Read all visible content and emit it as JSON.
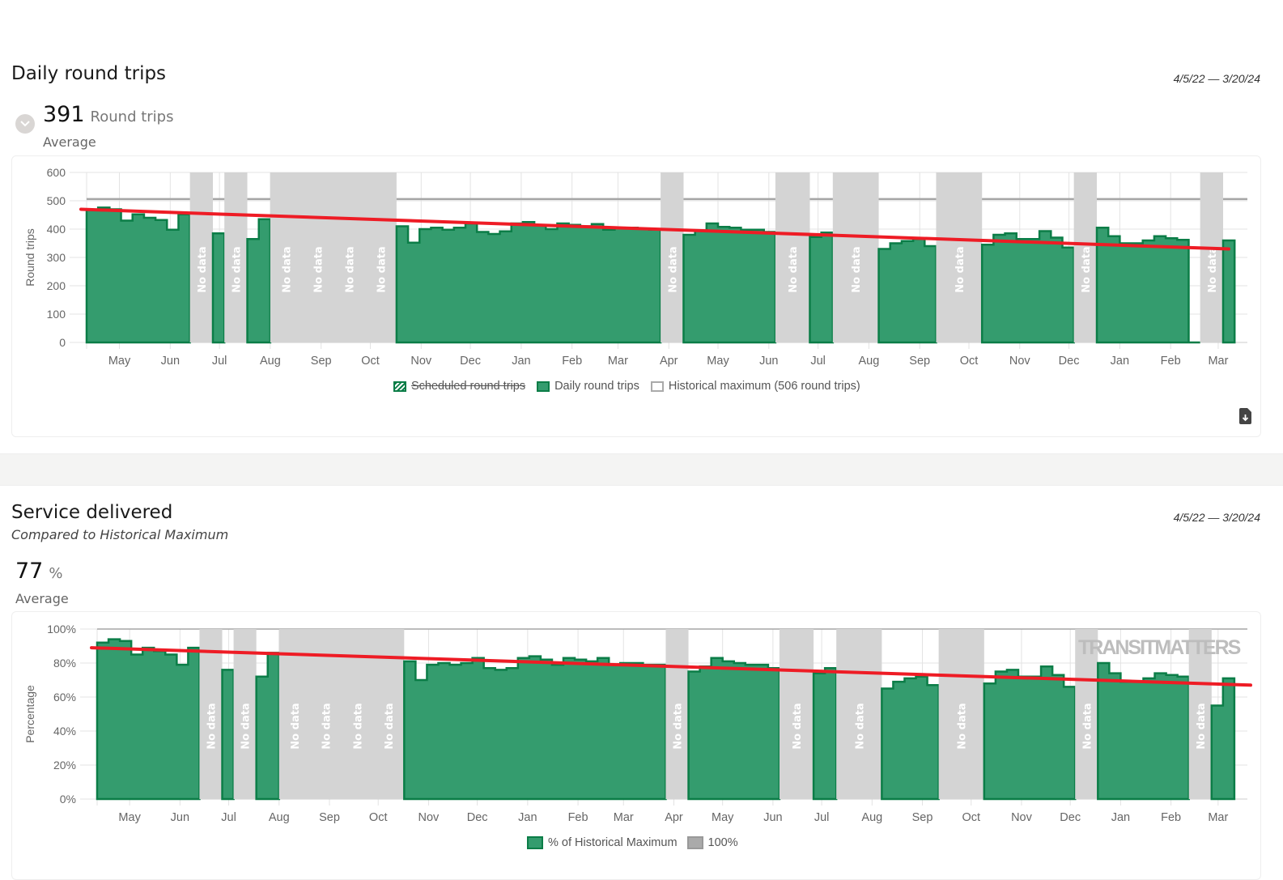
{
  "section1": {
    "title": "Daily round trips",
    "date_range": "4/5/22 — 3/20/24",
    "stat_value": "391",
    "stat_unit": "Round trips",
    "stat_label": "Average",
    "legend": [
      "Scheduled round trips",
      "Daily round trips",
      "Historical maximum (506 round trips)"
    ]
  },
  "section2": {
    "title": "Service delivered",
    "subtitle": "Compared to Historical Maximum",
    "date_range": "4/5/22 — 3/20/24",
    "stat_value": "77",
    "stat_unit": "%",
    "stat_label": "Average",
    "legend": [
      "% of Historical Maximum",
      "100%"
    ],
    "watermark": "TRANSITMATTERS"
  },
  "colors": {
    "fill": "#349c6e",
    "stroke": "#0b7d47",
    "nodata": "#d4d4d4",
    "trend": "#ee1c25",
    "maxline": "#a6a6a6"
  },
  "chart_data": [
    {
      "type": "area",
      "title": "Daily round trips",
      "ylabel": "Round trips",
      "ylim": [
        0,
        600
      ],
      "yticks": [
        0,
        100,
        200,
        300,
        400,
        500,
        600
      ],
      "ytick_labels": [
        "0",
        "100",
        "200",
        "300",
        "400",
        "500",
        "600"
      ],
      "x_start": "2022-04-11",
      "x_step_days": 7,
      "xticks": [
        [
          "May",
          "2022-05-01"
        ],
        [
          "Jun",
          "2022-06-01"
        ],
        [
          "Jul",
          "2022-07-01"
        ],
        [
          "Aug",
          "2022-08-01"
        ],
        [
          "Sep",
          "2022-09-01"
        ],
        [
          "Oct",
          "2022-10-01"
        ],
        [
          "Nov",
          "2022-11-01"
        ],
        [
          "Dec",
          "2022-12-01"
        ],
        [
          "Jan",
          "2023-01-01"
        ],
        [
          "Feb",
          "2023-02-01"
        ],
        [
          "Mar",
          "2023-03-01"
        ],
        [
          "Apr",
          "2023-04-01"
        ],
        [
          "May",
          "2023-05-01"
        ],
        [
          "Jun",
          "2023-06-01"
        ],
        [
          "Jul",
          "2023-07-01"
        ],
        [
          "Aug",
          "2023-08-01"
        ],
        [
          "Sep",
          "2023-09-01"
        ],
        [
          "Oct",
          "2023-10-01"
        ],
        [
          "Nov",
          "2023-11-01"
        ],
        [
          "Dec",
          "2023-12-01"
        ],
        [
          "Jan",
          "2024-01-01"
        ],
        [
          "Feb",
          "2024-02-01"
        ],
        [
          "Mar",
          "2024-03-01"
        ]
      ],
      "reference_line": 506,
      "trend": [
        470,
        330
      ],
      "nodata_label": "No data",
      "values": [
        468,
        476,
        470,
        430,
        452,
        440,
        432,
        398,
        452,
        null,
        null,
        385,
        null,
        null,
        365,
        435,
        null,
        null,
        null,
        null,
        null,
        null,
        null,
        null,
        null,
        null,
        null,
        410,
        352,
        400,
        405,
        398,
        405,
        420,
        390,
        383,
        392,
        420,
        425,
        415,
        400,
        420,
        415,
        410,
        418,
        398,
        405,
        405,
        402,
        398,
        null,
        null,
        380,
        395,
        420,
        408,
        405,
        398,
        398,
        390,
        null,
        null,
        null,
        372,
        388,
        null,
        null,
        null,
        null,
        330,
        350,
        358,
        365,
        340,
        null,
        null,
        null,
        null,
        345,
        380,
        385,
        365,
        365,
        393,
        370,
        335,
        null,
        null,
        405,
        375,
        350,
        350,
        360,
        375,
        368,
        362,
        0,
        null,
        null,
        360
      ]
    },
    {
      "type": "area",
      "title": "Service delivered",
      "ylabel": "Percentage",
      "ylim": [
        0,
        100
      ],
      "yticks": [
        0,
        20,
        40,
        60,
        80,
        100
      ],
      "ytick_labels": [
        "0%",
        "20%",
        "40%",
        "60%",
        "80%",
        "100%"
      ],
      "x_start": "2022-04-11",
      "x_step_days": 7,
      "xticks": [
        [
          "May",
          "2022-05-01"
        ],
        [
          "Jun",
          "2022-06-01"
        ],
        [
          "Jul",
          "2022-07-01"
        ],
        [
          "Aug",
          "2022-08-01"
        ],
        [
          "Sep",
          "2022-09-01"
        ],
        [
          "Oct",
          "2022-10-01"
        ],
        [
          "Nov",
          "2022-11-01"
        ],
        [
          "Dec",
          "2022-12-01"
        ],
        [
          "Jan",
          "2023-01-01"
        ],
        [
          "Feb",
          "2023-02-01"
        ],
        [
          "Mar",
          "2023-03-01"
        ],
        [
          "Apr",
          "2023-04-01"
        ],
        [
          "May",
          "2023-05-01"
        ],
        [
          "Jun",
          "2023-06-01"
        ],
        [
          "Jul",
          "2023-07-01"
        ],
        [
          "Aug",
          "2023-08-01"
        ],
        [
          "Sep",
          "2023-09-01"
        ],
        [
          "Oct",
          "2023-10-01"
        ],
        [
          "Nov",
          "2023-11-01"
        ],
        [
          "Dec",
          "2023-12-01"
        ],
        [
          "Jan",
          "2024-01-01"
        ],
        [
          "Feb",
          "2024-02-01"
        ],
        [
          "Mar",
          "2024-03-01"
        ]
      ],
      "reference_line": 100,
      "trend": [
        89,
        67
      ],
      "nodata_label": "No data",
      "values": [
        92,
        94,
        93,
        85,
        89,
        87,
        85,
        79,
        89,
        null,
        null,
        76,
        null,
        null,
        72,
        86,
        null,
        null,
        null,
        null,
        null,
        null,
        null,
        null,
        null,
        null,
        null,
        81,
        70,
        79,
        80,
        79,
        80,
        83,
        77,
        76,
        77,
        83,
        84,
        82,
        79,
        83,
        82,
        81,
        83,
        79,
        80,
        80,
        79,
        79,
        null,
        null,
        75,
        78,
        83,
        81,
        80,
        79,
        79,
        77,
        null,
        null,
        null,
        74,
        77,
        null,
        null,
        null,
        null,
        65,
        69,
        71,
        72,
        67,
        null,
        null,
        null,
        null,
        68,
        75,
        76,
        72,
        72,
        78,
        73,
        66,
        null,
        null,
        80,
        74,
        69,
        69,
        71,
        74,
        73,
        72,
        null,
        null,
        55,
        71
      ]
    }
  ]
}
